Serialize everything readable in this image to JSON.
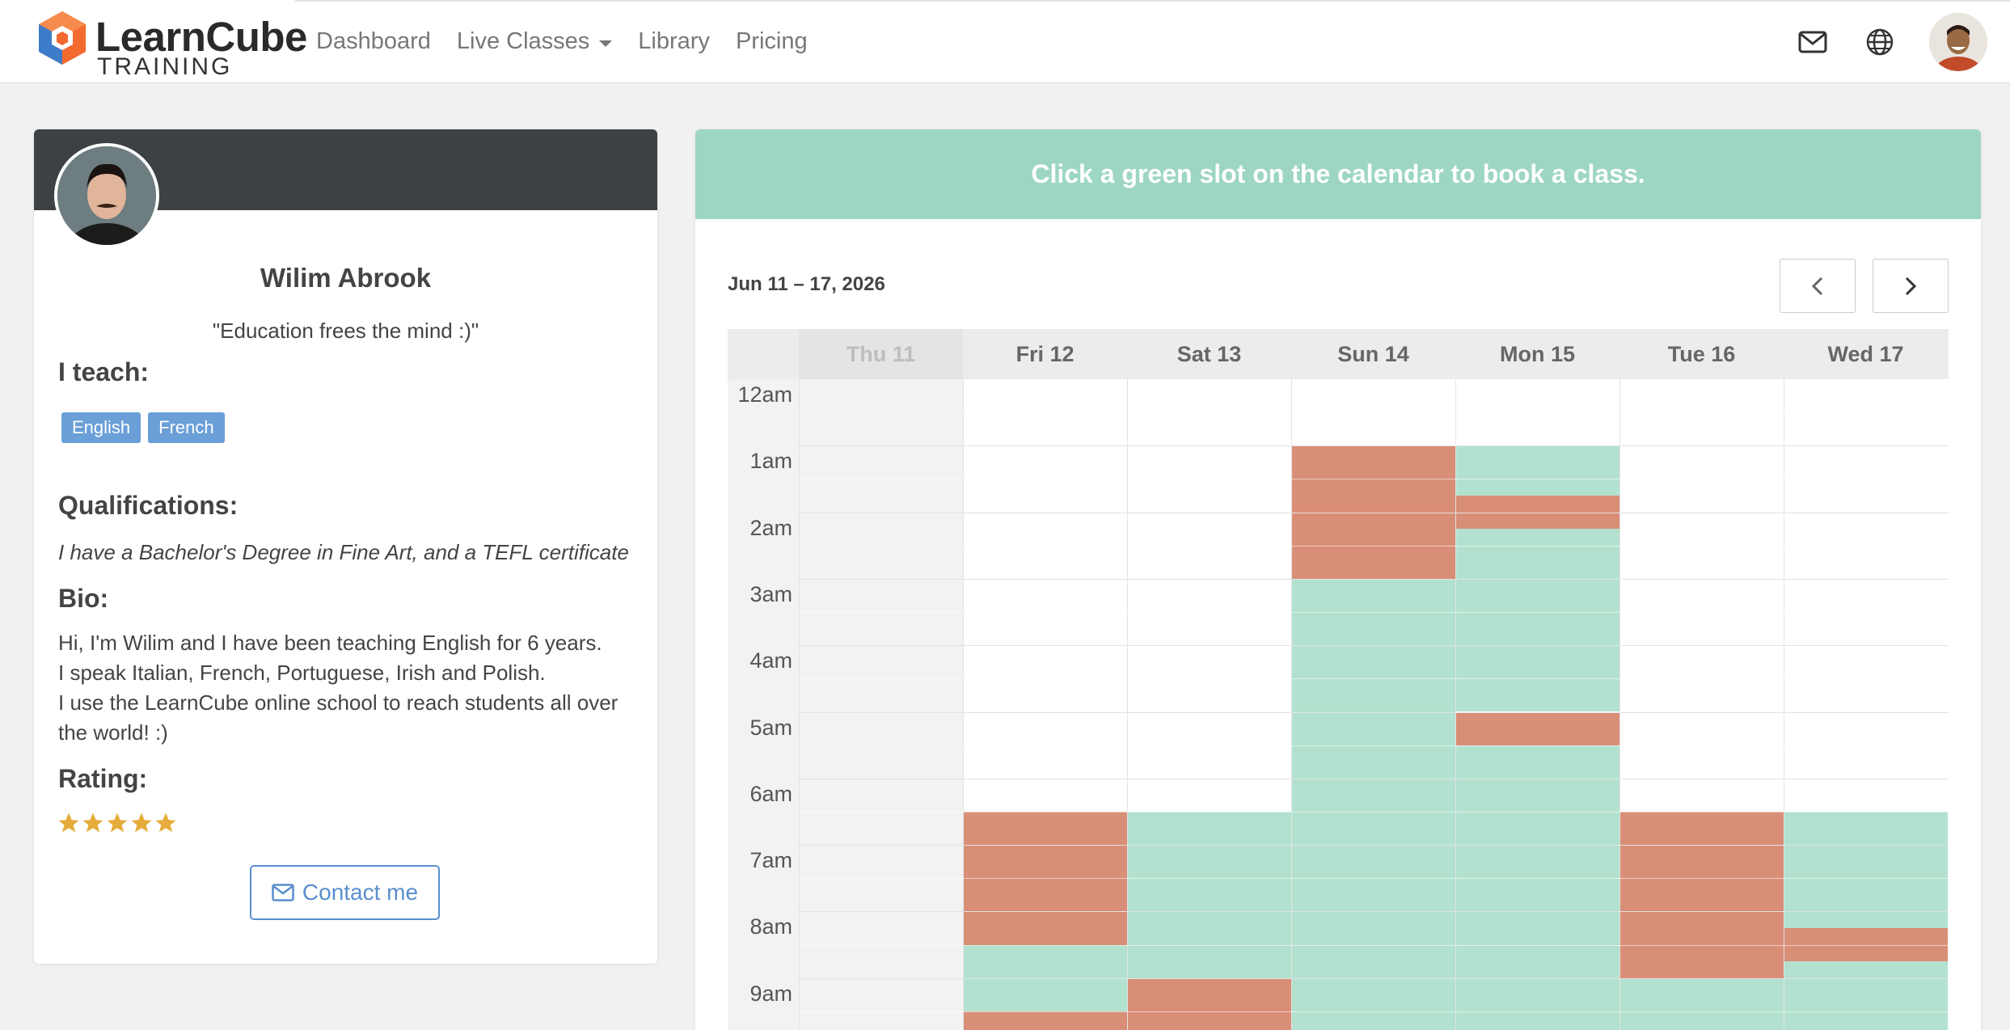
{
  "nav": {
    "brand_name": "LearnCube",
    "brand_sub": "TRAINING",
    "links": [
      "Dashboard",
      "Live Classes",
      "Library",
      "Pricing"
    ],
    "icons": [
      "envelope-icon",
      "globe-icon"
    ]
  },
  "profile": {
    "name": "Wilim Abrook",
    "quote": "\"Education frees the mind :)\"",
    "teach_heading": "I teach:",
    "languages": [
      "English",
      "French"
    ],
    "qual_heading": "Qualifications:",
    "qualifications": "I have a Bachelor's Degree in Fine Art, and a TEFL certificate",
    "bio_heading": "Bio:",
    "bio_lines": [
      "Hi, I'm Wilim and I have been teaching English for 6 years.",
      "I speak Italian, French, Portuguese, Irish and Polish.",
      "I use the LearnCube online school to reach students all over the world! :)"
    ],
    "rating_heading": "Rating:",
    "rating": 5,
    "rating_max": 5,
    "contact_label": "Contact me"
  },
  "calendar": {
    "banner": "Click a green slot on the calendar to book a class.",
    "range": "Jun 11 – 17, 2026",
    "days": [
      "Thu 11",
      "Fri 12",
      "Sat 13",
      "Sun 14",
      "Mon 15",
      "Tue 16",
      "Wed 17"
    ],
    "past_days": [
      0
    ],
    "hours": [
      "12am",
      "1am",
      "2am",
      "3am",
      "4am",
      "5am",
      "6am",
      "7am",
      "8am",
      "9am"
    ],
    "colors": {
      "available": "#b2e2cf",
      "booked": "#d98e77",
      "banner": "#9dd6c1"
    },
    "slots": [
      {
        "day": 3,
        "start": 1.0,
        "end": 3.0,
        "status": "booked"
      },
      {
        "day": 3,
        "start": 3.0,
        "end": 10.0,
        "status": "available"
      },
      {
        "day": 4,
        "start": 1.0,
        "end": 1.75,
        "status": "available"
      },
      {
        "day": 4,
        "start": 1.75,
        "end": 2.25,
        "status": "booked"
      },
      {
        "day": 4,
        "start": 2.25,
        "end": 5.0,
        "status": "available"
      },
      {
        "day": 4,
        "start": 5.0,
        "end": 5.5,
        "status": "booked"
      },
      {
        "day": 4,
        "start": 5.5,
        "end": 10.0,
        "status": "available"
      },
      {
        "day": 1,
        "start": 6.5,
        "end": 8.5,
        "status": "booked"
      },
      {
        "day": 1,
        "start": 8.5,
        "end": 9.5,
        "status": "available"
      },
      {
        "day": 1,
        "start": 9.5,
        "end": 10.0,
        "status": "booked"
      },
      {
        "day": 2,
        "start": 6.5,
        "end": 9.0,
        "status": "available"
      },
      {
        "day": 2,
        "start": 9.0,
        "end": 10.0,
        "status": "booked"
      },
      {
        "day": 5,
        "start": 6.5,
        "end": 9.0,
        "status": "booked"
      },
      {
        "day": 5,
        "start": 9.0,
        "end": 10.0,
        "status": "available"
      },
      {
        "day": 6,
        "start": 6.5,
        "end": 8.25,
        "status": "available"
      },
      {
        "day": 6,
        "start": 8.25,
        "end": 8.75,
        "status": "booked"
      },
      {
        "day": 6,
        "start": 8.75,
        "end": 10.0,
        "status": "available"
      }
    ]
  }
}
